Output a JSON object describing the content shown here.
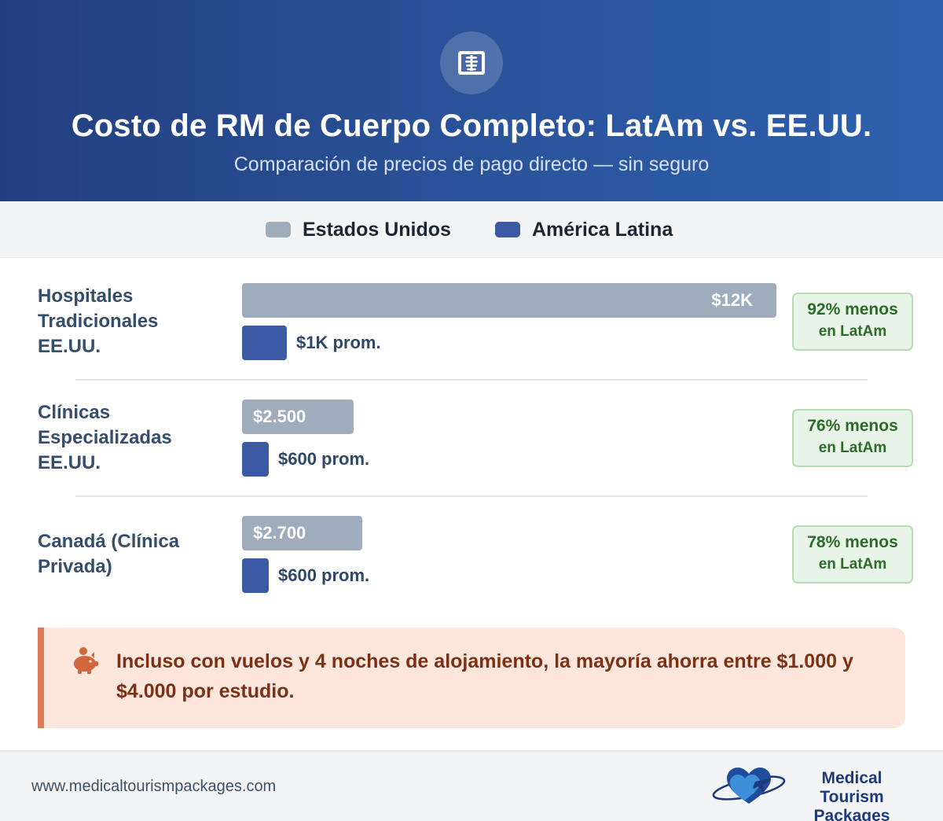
{
  "header": {
    "icon": "x-ray-icon",
    "title": "Costo de RM de Cuerpo Completo: LatAm vs. EE.UU.",
    "subtitle": "Comparación de precios de pago directo — sin seguro"
  },
  "colors": {
    "us": "#9eacbc",
    "latam": "#3b5aa3",
    "header_start": "#233f7f",
    "header_end": "#2c60ad",
    "badge_text": "#2d6b2a",
    "note_accent": "#e0785a"
  },
  "chart_data": {
    "type": "bar",
    "orientation": "horizontal",
    "xlim": [
      0,
      12000
    ],
    "legend": [
      "Estados Unidos",
      "América Latina"
    ],
    "legend_placement": "top",
    "categories": [
      {
        "label": "Hospitales Tradicionales EE.UU.",
        "us_value": 12000,
        "us_label": "$12K",
        "us_label_align": "right",
        "latam_value": 1000,
        "latam_label": "$1K prom.",
        "savings_line1": "92% menos",
        "savings_line2": "en LatAm"
      },
      {
        "label": "Clínicas Especializadas EE.UU.",
        "us_value": 2500,
        "us_label": "$2.500",
        "us_label_align": "left",
        "latam_value": 600,
        "latam_label": "$600 prom.",
        "savings_line1": "76% menos",
        "savings_line2": "en LatAm"
      },
      {
        "label": "Canadá (Clínica Privada)",
        "us_value": 2700,
        "us_label": "$2.700",
        "us_label_align": "left",
        "latam_value": 600,
        "latam_label": "$600 prom.",
        "savings_line1": "78% menos",
        "savings_line2": "en LatAm"
      }
    ]
  },
  "note": {
    "icon": "piggy-bank-icon",
    "text": "Incluso con vuelos y 4 noches de alojamiento, la mayoría ahorra entre $1.000 y $4.000 por estudio."
  },
  "footer": {
    "url": "www.medicaltourismpackages.com",
    "logo_icon": "heart-airplane-logo-icon",
    "logo_line1": "Medical Tourism",
    "logo_line2": "Packages"
  }
}
